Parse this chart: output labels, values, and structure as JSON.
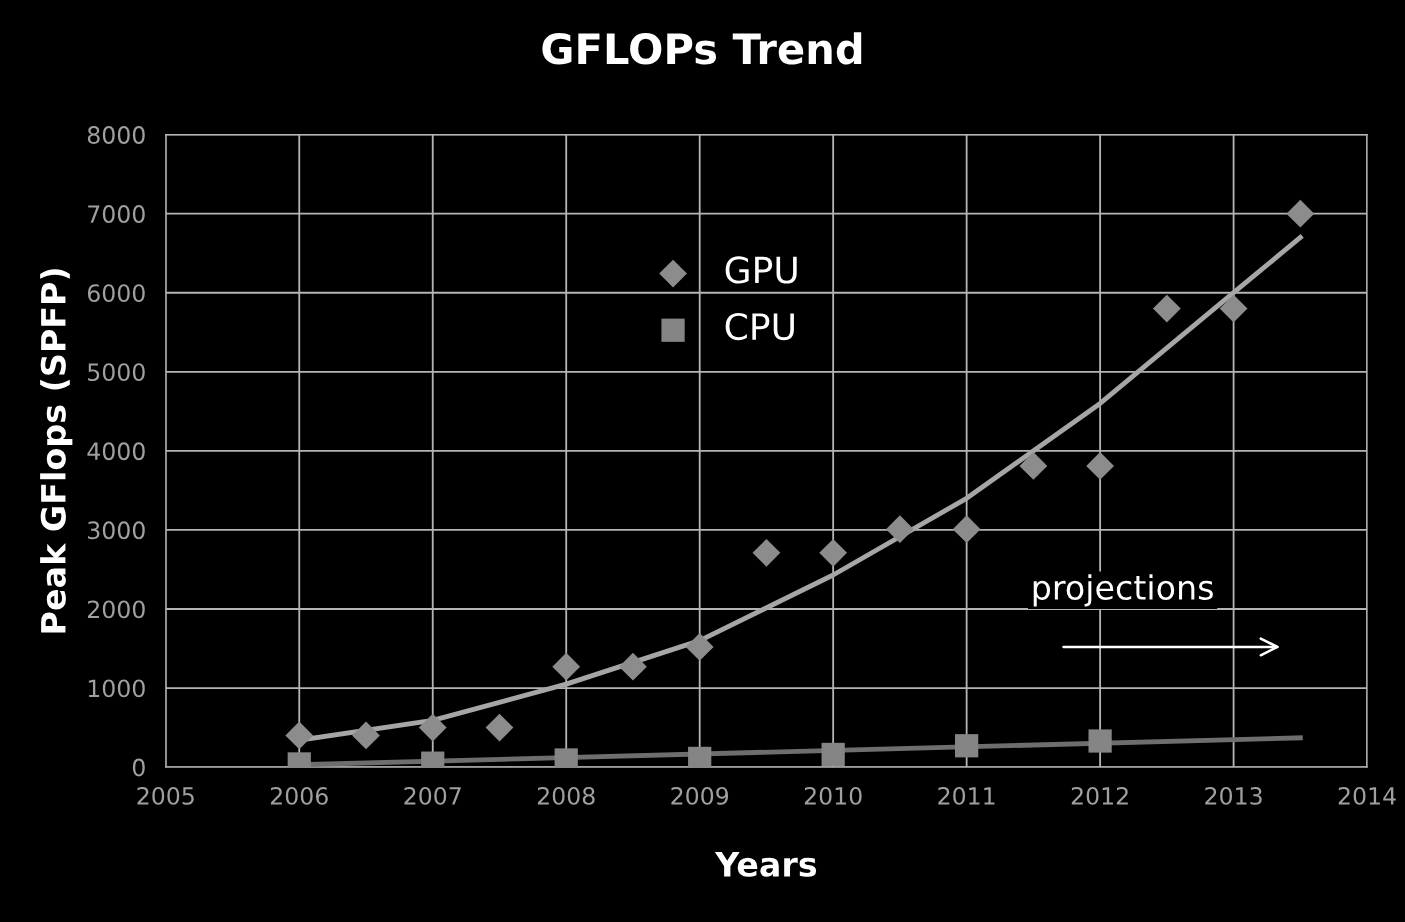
{
  "chart_data": {
    "type": "scatter",
    "title": "GFLOPs Trend",
    "xlabel": "Years",
    "ylabel": "Peak GFlops (SPFP)",
    "series": [
      {
        "name": "GPU",
        "marker": "diamond",
        "color": "#8c8c8c",
        "x": [
          2006,
          2006.5,
          2007,
          2007.5,
          2008,
          2008.5,
          2009,
          2009.5,
          2010,
          2010.5,
          2011,
          2011.5,
          2012,
          2012.5,
          2013,
          2013.5
        ],
        "values": [
          400,
          400,
          500,
          500,
          1270,
          1270,
          1520,
          2710,
          2710,
          3010,
          3010,
          3810,
          3810,
          5800,
          5800,
          7000
        ]
      },
      {
        "name": "CPU",
        "marker": "square",
        "color": "#858585",
        "x": [
          2006,
          2007,
          2008,
          2009,
          2010,
          2011,
          2012
        ],
        "values": [
          40,
          50,
          90,
          110,
          160,
          270,
          330
        ]
      },
      {
        "type": "line",
        "color": "#a6a6a6",
        "x": [
          2006,
          2007,
          2008,
          2009,
          2010,
          2011,
          2012,
          2013,
          2013.5
        ],
        "values": [
          340,
          590,
          1050,
          1600,
          2430,
          3400,
          4600,
          6000,
          6700
        ]
      },
      {
        "type": "line",
        "color": "#6e6e6e",
        "x": [
          2006,
          2013.5
        ],
        "values": [
          30,
          370
        ]
      }
    ],
    "xlim": [
      2005,
      2014
    ],
    "xticks": [
      2005,
      2006,
      2007,
      2008,
      2009,
      2010,
      2011,
      2012,
      2013,
      2014
    ],
    "ylim": [
      0,
      8000
    ],
    "yticks": [
      0,
      1000,
      2000,
      3000,
      4000,
      5000,
      6000,
      7000,
      8000
    ],
    "grid": true,
    "legend": "top",
    "annotations": [
      "projections"
    ]
  }
}
